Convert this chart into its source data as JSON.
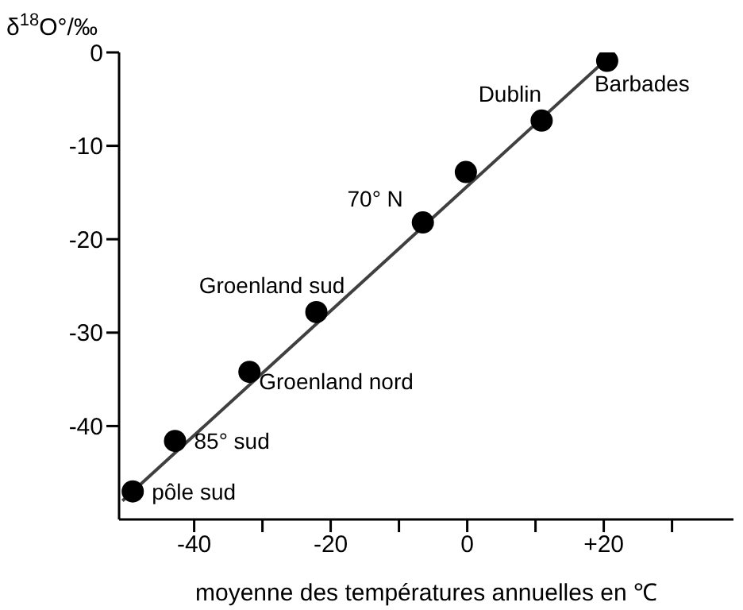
{
  "chart_data": {
    "type": "scatter",
    "ylabel": "δ$^{18}$O°/‰",
    "xlabel": "moyenne des températures annuelles en ℃",
    "xlim": [
      -51,
      39
    ],
    "xticks": [
      -40,
      {
        "value": -30,
        "label": null
      },
      -20,
      {
        "value": -10,
        "label": null
      },
      0,
      {
        "value": 10,
        "label": null
      },
      {
        "value": 20,
        "label": "+20"
      },
      {
        "value": 30,
        "label": null
      }
    ],
    "ylim": [
      -50,
      0
    ],
    "yticks": [
      0,
      -10,
      -20,
      -30,
      -40
    ],
    "series": [
      {
        "color": "#000000",
        "marker": "circle",
        "x": [
          -49,
          -42.8,
          -31.9,
          -22.1,
          -6.5,
          -0.2,
          10.9,
          20.5
        ],
        "values": [
          -47,
          -41.6,
          -34.2,
          -27.8,
          -18.2,
          -12.8,
          -7.3,
          -0.9
        ]
      },
      {
        "type": "line",
        "color": "#404040",
        "marker": "none",
        "x": [
          -50.5,
          21.2
        ],
        "values": [
          -48,
          -0.2
        ]
      }
    ],
    "annotations": [
      {
        "text": "pôle sud",
        "x": -49,
        "y": -47
      },
      {
        "text": "85° sud",
        "x": -42.8,
        "y": -41.6
      },
      {
        "text": "Groenland nord",
        "x": -31.9,
        "y": -34.2
      },
      {
        "text": "Groenland sud",
        "x": -22.1,
        "y": -27.8
      },
      {
        "text": "70° N",
        "x": -6.5,
        "y": -18.2
      },
      {
        "text": "Dublin",
        "x": 10.9,
        "y": -7.3
      },
      {
        "text": "Barbades",
        "x": 20.5,
        "y": -0.9
      }
    ],
    "grid": false,
    "legend": false
  }
}
